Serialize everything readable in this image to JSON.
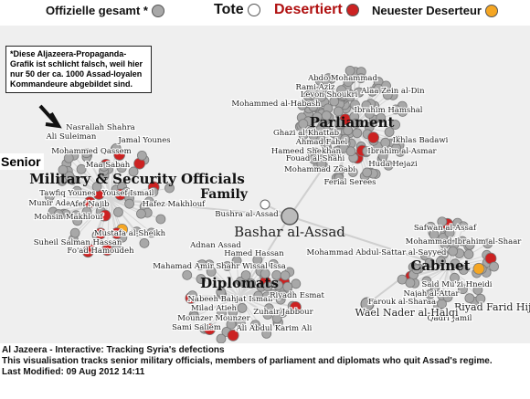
{
  "legend": {
    "official_label": "Offizielle gesamt *",
    "dead_label": "Tote",
    "deserted_label": "Desertiert",
    "newest_label": "Neuester Deserteur",
    "colors": {
      "official": "#a8a8a8",
      "dead": "#ffffff",
      "deserted": "#cc2222",
      "newest": "#f5a623"
    }
  },
  "note": "*Diese Aljazeera-Propaganda-Grafik ist schlicht falsch, weil hier nur 50 der ca. 1000 Assad-loyalen Kommandeure abgebildet sind.",
  "senior_label": "Senior",
  "diagram": {
    "center": "Bashar al-Assad",
    "groups": {
      "military": "Military & Security Officials",
      "family": "Family",
      "parliament": "Parliament",
      "cabinet": "Cabinet",
      "diplomats": "Diplomats"
    },
    "names": {
      "military": [
        "Nasrallah Shahra",
        "Ali Suleiman",
        "Jamal Younes",
        "Mohammed Qassem",
        "Maa Sabah",
        "Tawfiq Younes",
        "Yousef Ismail",
        "Munir Adanov",
        "Afef Najib",
        "Hafez Makhlouf",
        "Mohsin Makhlouf",
        "Mustafa al-Sheikh",
        "Suheil Salman Hassan",
        "Fo'ad Hamoudeh"
      ],
      "family": [
        "Bushra al-Assad"
      ],
      "parliament": [
        "Abdo Mohammad",
        "Rami Aziz",
        "Levon Shoukri",
        "Alaa Zein al-Din",
        "Mohammed al-Habash",
        "Ibrahim Hamshal",
        "Ghazi al-Khattab",
        "Ahmad Fahel",
        "Ikhlas Badawi",
        "Hameed Shekhan",
        "Ibrahim al-Asmar",
        "Fouad al-Shahi",
        "Huda Hejazi",
        "Mohammad Zoabi",
        "Ferial Serees"
      ],
      "cabinet": [
        "Safwan al-Assaf",
        "Mohammad Ibrahim al-Shaar",
        "Mohammad Abdul-Sattar al-Sayyed",
        "Said Mu'zi Hneidi",
        "Najah al-Attar",
        "Riyad Farid Hijab",
        "Farouk al-Sharaa",
        "Qadri Jamil",
        "Wael Nader al-Halqi"
      ],
      "diplomats": [
        "Adnan Assad",
        "Hamed Hassan",
        "Mahamad Amir Shahr Wissal Issa",
        "Nabeeh Bahjat Ismail",
        "Riyadh Esmat",
        "Milad Atieh",
        "Zuhair Jabbour",
        "Mounzer Mounzer",
        "Sami Saliem",
        "Ali Abdul Karim Ali"
      ]
    }
  },
  "footer": {
    "title": "Al Jazeera  -  Interactive: Tracking Syria's defections",
    "description": "This visualisation tracks senior military officials, members of parliament and diplomats who quit Assad's regime.",
    "modified": "Last Modified: 09 Aug 2012 14:11"
  }
}
